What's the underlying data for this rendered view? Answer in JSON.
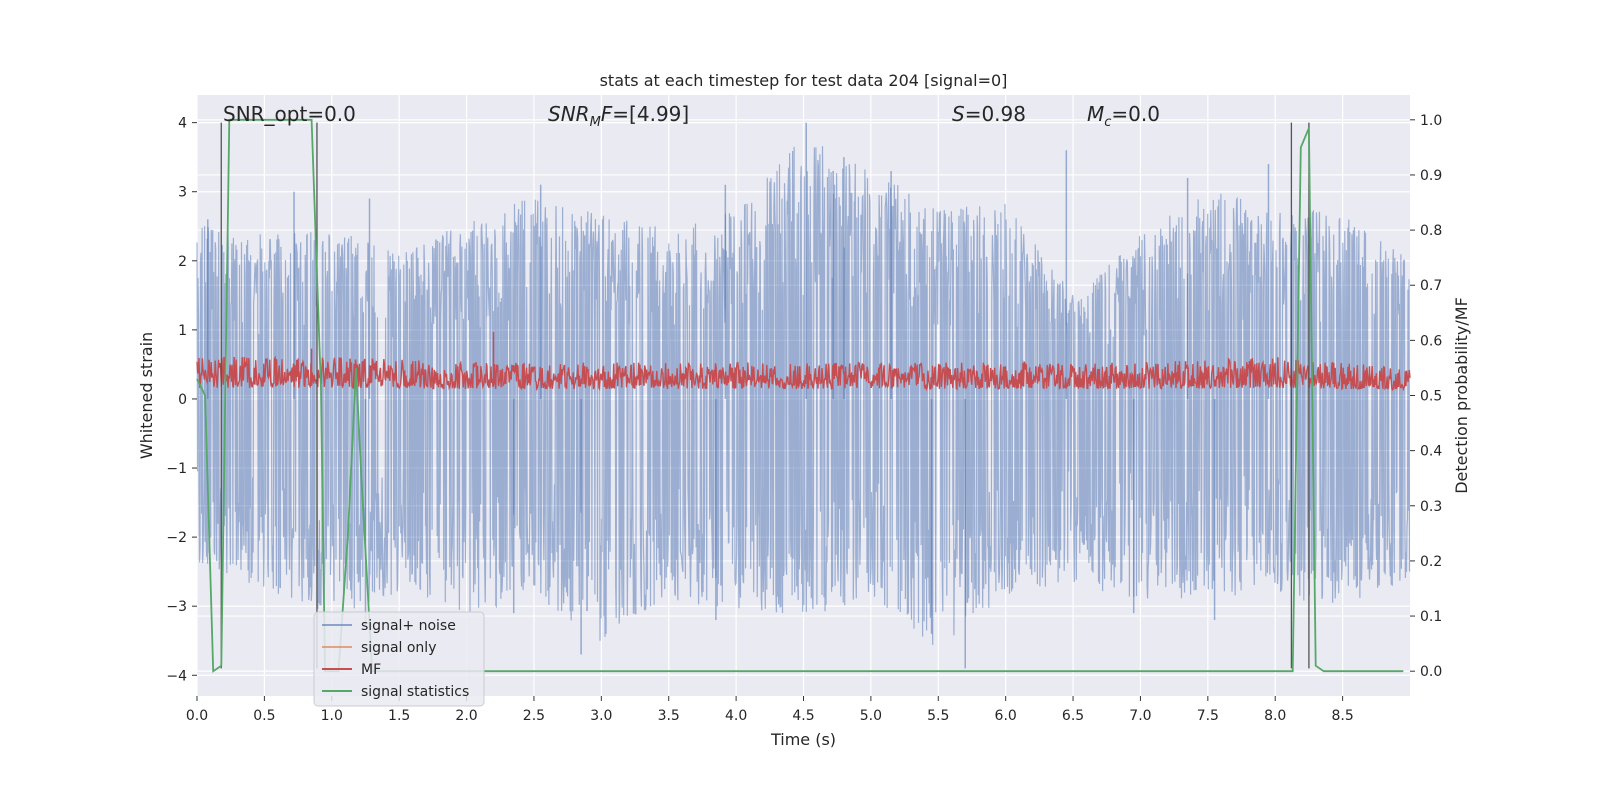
{
  "chart_data": {
    "type": "line",
    "title": "stats at each timestep for test data 204 [signal=0]",
    "xlabel": "Time (s)",
    "ylabel_left": "Whitened strain",
    "ylabel_right": "Detection probability/MF",
    "xlim": [
      0,
      9
    ],
    "ylim_left": [
      -4.3,
      4.4
    ],
    "ylim_right": [
      -0.045,
      1.045
    ],
    "x_ticks": [
      "0.0",
      "0.5",
      "1.0",
      "1.5",
      "2.0",
      "2.5",
      "3.0",
      "3.5",
      "4.0",
      "4.5",
      "5.0",
      "5.5",
      "6.0",
      "6.5",
      "7.0",
      "7.5",
      "8.0",
      "8.5"
    ],
    "y_ticks_left": [
      "−4",
      "−3",
      "−2",
      "−1",
      "0",
      "1",
      "2",
      "3",
      "4"
    ],
    "y_ticks_right": [
      "0.0",
      "0.1",
      "0.2",
      "0.3",
      "0.4",
      "0.5",
      "0.6",
      "0.7",
      "0.8",
      "0.9",
      "1.0"
    ],
    "grid": true,
    "legend_position": "lower-left",
    "annotations": {
      "snr_opt": "SNR_opt=0.0",
      "snr_mf_base": "SNR",
      "snr_mf_sub": "M",
      "snr_mf_rest": "F=[4.99]",
      "s_italic": "S",
      "s_rest": "=0.98",
      "mc_base": "M",
      "mc_sub": "c",
      "mc_rest": "=0.0"
    },
    "series": [
      {
        "name": "signal+ noise",
        "color": "#4c72b0",
        "envelope": {
          "x": [
            0.0,
            0.5,
            1.0,
            1.5,
            2.0,
            2.5,
            3.0,
            3.5,
            4.0,
            4.5,
            5.0,
            5.5,
            6.0,
            6.5,
            7.0,
            7.5,
            8.0,
            8.5,
            9.0
          ],
          "max": [
            2.7,
            2.5,
            2.6,
            2.3,
            2.7,
            3.1,
            2.8,
            2.6,
            2.9,
            4.0,
            3.5,
            2.9,
            3.0,
            1.6,
            2.5,
            3.2,
            2.9,
            2.9,
            2.1
          ],
          "min": [
            -2.5,
            -2.9,
            -3.3,
            -3.0,
            -3.3,
            -3.0,
            -3.7,
            -3.1,
            -3.2,
            -3.4,
            -3.0,
            -3.9,
            -3.0,
            -2.8,
            -3.1,
            -3.0,
            -3.0,
            -3.2,
            -2.9
          ]
        },
        "spikes": [
          {
            "x": 0.08,
            "y": 2.6
          },
          {
            "x": 0.72,
            "y": 3.0
          },
          {
            "x": 1.28,
            "y": 2.9
          },
          {
            "x": 2.55,
            "y": 3.1
          },
          {
            "x": 3.92,
            "y": 3.1
          },
          {
            "x": 4.52,
            "y": 4.0
          },
          {
            "x": 4.72,
            "y": 3.3
          },
          {
            "x": 4.8,
            "y": 3.5
          },
          {
            "x": 5.15,
            "y": 3.3
          },
          {
            "x": 6.45,
            "y": 3.6
          },
          {
            "x": 7.35,
            "y": 3.2
          },
          {
            "x": 7.95,
            "y": 3.4
          },
          {
            "x": 2.85,
            "y": -3.7
          },
          {
            "x": 3.85,
            "y": -3.2
          },
          {
            "x": 5.45,
            "y": -3.4
          },
          {
            "x": 5.7,
            "y": -3.9
          },
          {
            "x": 7.55,
            "y": -3.2
          },
          {
            "x": 1.25,
            "y": -3.3
          },
          {
            "x": 2.35,
            "y": -3.1
          },
          {
            "x": 6.95,
            "y": -3.1
          }
        ]
      },
      {
        "name": "signal only",
        "color": "#dd8452"
      },
      {
        "name": "MF",
        "color": "#c44e52",
        "envelope": {
          "x": [
            0.0,
            1.0,
            2.0,
            3.0,
            4.0,
            5.0,
            6.0,
            7.0,
            8.0,
            9.0
          ],
          "max": [
            0.57,
            0.57,
            0.56,
            0.56,
            0.56,
            0.56,
            0.56,
            0.56,
            0.57,
            0.55
          ],
          "min": [
            0.5,
            0.5,
            0.5,
            0.5,
            0.5,
            0.5,
            0.5,
            0.5,
            0.5,
            0.5
          ]
        },
        "spikes": [
          {
            "x": 2.2,
            "y": 0.615
          },
          {
            "x": 0.85,
            "y": 0.585
          }
        ]
      },
      {
        "name": "signal statistics",
        "color": "#55a868",
        "x": [
          0.0,
          0.06,
          0.12,
          0.18,
          0.24,
          0.85,
          0.92,
          0.95,
          1.05,
          1.12,
          1.18,
          1.22,
          1.3,
          1.36,
          8.1,
          8.13,
          8.19,
          8.25,
          8.3,
          8.36,
          8.95
        ],
        "values": [
          0.53,
          0.5,
          0.0,
          0.01,
          1.0,
          1.0,
          0.51,
          0.0,
          0.0,
          0.25,
          0.55,
          0.35,
          0.0,
          0.0,
          0.0,
          0.0,
          0.95,
          0.985,
          0.01,
          0.0,
          0.0
        ]
      }
    ],
    "vertical_lines": [
      0.18,
      0.89,
      8.12,
      8.25
    ]
  }
}
